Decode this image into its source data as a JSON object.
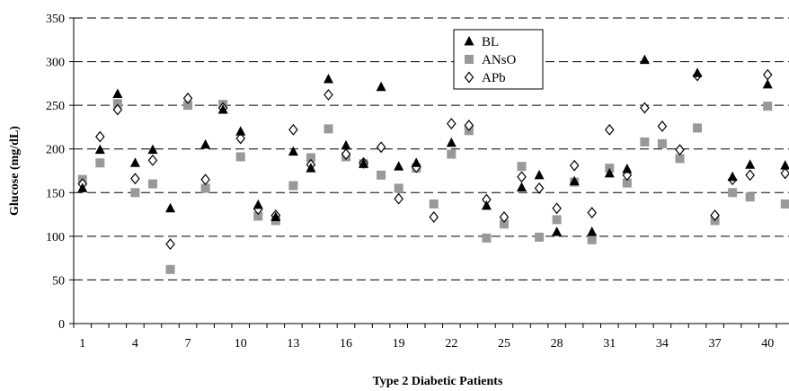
{
  "chart_data": {
    "type": "scatter",
    "xlabel": "Type 2 Diabetic Patients",
    "ylabel": "Glucose (mg/dL)",
    "xlim": [
      0.5,
      40.5
    ],
    "ylim": [
      0,
      350
    ],
    "y_ticks": [
      0,
      50,
      100,
      150,
      200,
      250,
      300,
      350
    ],
    "x_ticks": [
      1,
      4,
      7,
      10,
      13,
      16,
      19,
      22,
      25,
      28,
      31,
      34,
      37,
      40
    ],
    "grid": "horizontal dashed",
    "legend_position": "top-center",
    "x": [
      1,
      2,
      3,
      4,
      5,
      6,
      7,
      8,
      9,
      10,
      11,
      12,
      13,
      14,
      15,
      16,
      17,
      18,
      19,
      20,
      21,
      22,
      23,
      24,
      25,
      26,
      27,
      28,
      29,
      30,
      31,
      32,
      33,
      34,
      35,
      36,
      37,
      38,
      39,
      40,
      41
    ],
    "series": [
      {
        "name": "BL",
        "marker": "triangle",
        "color": "#000000",
        "values": [
          155,
          199,
          263,
          184,
          199,
          132,
          null,
          205,
          245,
          220,
          136,
          122,
          197,
          178,
          280,
          204,
          183,
          271,
          180,
          184,
          null,
          207,
          null,
          135,
          null,
          156,
          170,
          105,
          163,
          105,
          172,
          177,
          302,
          null,
          null,
          287,
          null,
          168,
          182,
          274,
          181
        ]
      },
      {
        "name": "ANsO",
        "marker": "square",
        "color": "#999999",
        "values": [
          165,
          184,
          252,
          150,
          160,
          62,
          250,
          155,
          251,
          191,
          123,
          118,
          158,
          190,
          223,
          191,
          183,
          170,
          155,
          178,
          137,
          194,
          221,
          98,
          114,
          180,
          99,
          119,
          162,
          96,
          178,
          161,
          208,
          206,
          189,
          224,
          118,
          150,
          145,
          249,
          137
        ]
      },
      {
        "name": "APb",
        "marker": "diamond",
        "color": "#000000",
        "values": [
          160,
          214,
          245,
          166,
          187,
          91,
          258,
          165,
          247,
          212,
          131,
          124,
          222,
          182,
          262,
          194,
          184,
          202,
          143,
          179,
          122,
          229,
          227,
          142,
          122,
          168,
          155,
          132,
          181,
          127,
          222,
          170,
          247,
          226,
          199,
          284,
          124,
          165,
          170,
          285,
          172
        ]
      }
    ]
  }
}
